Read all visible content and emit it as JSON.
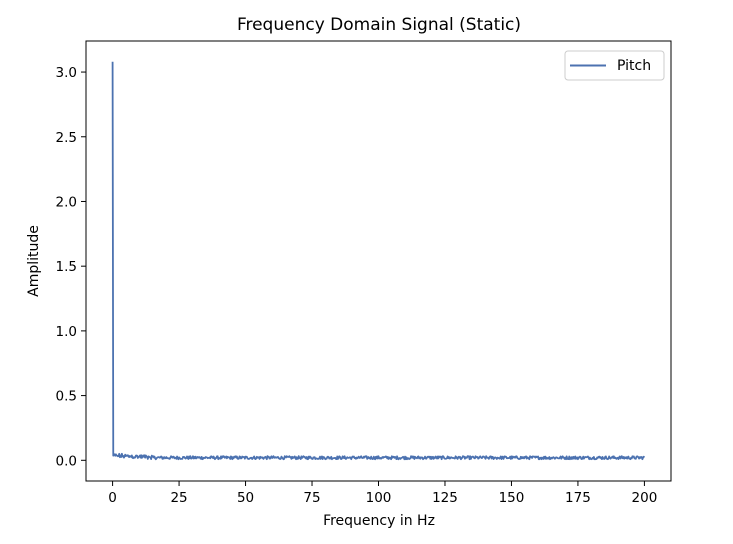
{
  "chart_data": {
    "type": "line",
    "title": "Frequency Domain Signal (Static)",
    "xlabel": "Frequency in Hz",
    "ylabel": "Amplitude",
    "xlim": [
      -10,
      210
    ],
    "ylim": [
      -0.16,
      3.24
    ],
    "xticks": [
      0,
      25,
      50,
      75,
      100,
      125,
      150,
      175,
      200
    ],
    "yticks": [
      0.0,
      0.5,
      1.0,
      1.5,
      2.0,
      2.5,
      3.0
    ],
    "xtick_labels": [
      "0",
      "25",
      "50",
      "75",
      "100",
      "125",
      "150",
      "175",
      "200"
    ],
    "ytick_labels": [
      "0.0",
      "0.5",
      "1.0",
      "1.5",
      "2.0",
      "2.5",
      "3.0"
    ],
    "grid": false,
    "legend_position": "top-right",
    "series": [
      {
        "name": "Pitch",
        "color": "#4c72b0",
        "peak": {
          "x": 0,
          "y": 3.08
        },
        "noise_floor": 0.02,
        "noise_amplitude": 0.012,
        "x_start": 0,
        "x_end": 200
      }
    ]
  }
}
